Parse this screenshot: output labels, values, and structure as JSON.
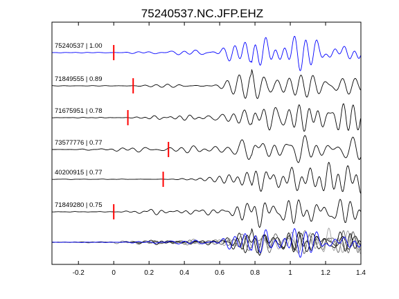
{
  "chart_data": {
    "type": "line",
    "title": "75240537.NC.JFP.EHZ",
    "xlim": [
      -0.35,
      1.4
    ],
    "xticks": [
      -0.2,
      0,
      0.2,
      0.4,
      0.6,
      0.8,
      1,
      1.2,
      1.4
    ],
    "xtick_labels": [
      "-0.2",
      "0",
      "0.2",
      "0.4",
      "0.6",
      "0.8",
      "1",
      "1.2",
      "1.4"
    ],
    "grid": false,
    "series": [
      {
        "name": "75240537 | 1.00",
        "label": "75240537 | 1.00",
        "color": "#0000ff",
        "pick_time": 0.0,
        "onset": 0.05,
        "seed": 1
      },
      {
        "name": "71849555 | 0.89",
        "label": "71849555 | 0.89",
        "color": "#000000",
        "pick_time": 0.11,
        "onset": 0.12,
        "seed": 2
      },
      {
        "name": "71675951 | 0.78",
        "label": "71675951 | 0.78",
        "color": "#000000",
        "pick_time": 0.08,
        "onset": 0.1,
        "seed": 3
      },
      {
        "name": "73577776 | 0.77",
        "label": "73577776 | 0.77",
        "color": "#000000",
        "pick_time": 0.31,
        "onset": -0.2,
        "seed": 4
      },
      {
        "name": "40200915 | 0.77",
        "label": "40200915 | 0.77",
        "color": "#000000",
        "pick_time": 0.28,
        "onset": 0.3,
        "seed": 5
      },
      {
        "name": "71849280 | 0.75",
        "label": "71849280 | 0.75",
        "color": "#000000",
        "pick_time": 0.0,
        "onset": 0.0,
        "seed": 6
      }
    ],
    "stack": {
      "colors": [
        "#000000",
        "#606060",
        "#808080",
        "#a0a0a0",
        "#0000ff"
      ]
    },
    "pick_color": "#ff0000"
  }
}
